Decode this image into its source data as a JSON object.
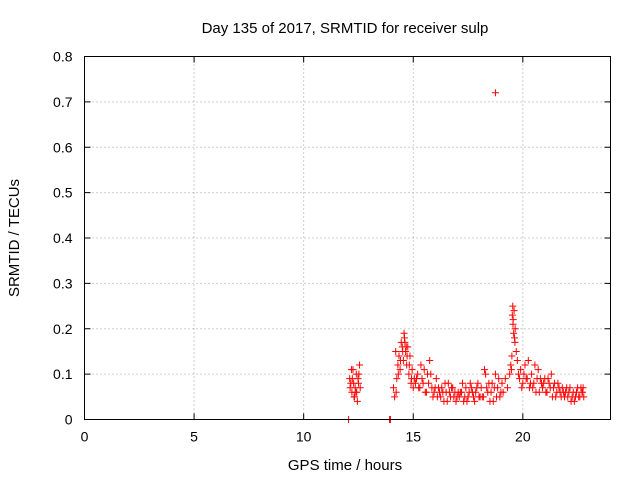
{
  "chart_data": {
    "type": "scatter",
    "title": "Day 135 of 2017, SRMTID for receiver sulp",
    "xlabel": "GPS time / hours",
    "ylabel": "SRMTID / TECUs",
    "xlim": [
      0,
      24
    ],
    "ylim": [
      0,
      0.8
    ],
    "xticks": [
      0,
      5,
      10,
      15,
      20
    ],
    "xtick_labels": [
      "0",
      "5",
      "10",
      "15",
      "20"
    ],
    "yticks": [
      0,
      0.1,
      0.2,
      0.3,
      0.4,
      0.5,
      0.6,
      0.7,
      0.8
    ],
    "ytick_labels": [
      "0",
      "0.1",
      "0.2",
      "0.3",
      "0.4",
      "0.5",
      "0.6",
      "0.7",
      "0.8"
    ],
    "grid": true,
    "marker": "+",
    "series": [
      {
        "name": "SRMTID",
        "color": "#ff0000",
        "x": [
          12.1,
          12.15,
          12.2,
          12.25,
          12.3,
          12.35,
          12.4,
          12.45,
          12.5,
          12.55,
          12.12,
          12.22,
          12.32,
          12.42,
          12.52,
          12.18,
          12.28,
          12.38,
          12.48,
          12.58,
          12.05,
          13.92,
          13.96,
          14.1,
          14.15,
          14.2,
          14.25,
          14.3,
          14.35,
          14.4,
          14.45,
          14.5,
          14.55,
          14.6,
          14.65,
          14.7,
          14.75,
          14.8,
          14.85,
          14.9,
          14.95,
          15.0,
          15.05,
          14.22,
          14.32,
          14.42,
          14.52,
          14.62,
          14.72,
          14.82,
          14.92,
          14.58,
          14.68,
          15.1,
          15.2,
          15.3,
          15.4,
          15.5,
          15.6,
          15.7,
          15.8,
          15.9,
          16.0,
          15.15,
          15.25,
          15.35,
          15.45,
          15.55,
          15.65,
          15.75,
          15.85,
          15.95,
          16.05,
          16.1,
          16.2,
          16.3,
          16.4,
          16.5,
          16.6,
          16.7,
          16.8,
          16.9,
          17.0,
          16.15,
          16.25,
          16.35,
          16.45,
          16.55,
          16.65,
          16.75,
          16.85,
          16.95,
          17.05,
          17.1,
          17.2,
          17.3,
          17.4,
          17.5,
          17.6,
          17.7,
          17.8,
          17.9,
          18.0,
          17.15,
          17.25,
          17.35,
          17.45,
          17.55,
          17.65,
          17.75,
          17.85,
          17.95,
          18.05,
          18.1,
          18.2,
          18.3,
          18.4,
          18.5,
          18.6,
          18.7,
          18.8,
          18.9,
          19.0,
          18.15,
          18.25,
          18.35,
          18.45,
          18.55,
          18.65,
          18.75,
          18.85,
          18.95,
          19.05,
          18.75,
          19.1,
          19.2,
          19.3,
          19.4,
          19.45,
          19.5,
          19.55,
          19.6,
          19.65,
          19.7,
          19.52,
          19.54,
          19.56,
          19.58,
          19.62,
          19.64,
          19.48,
          19.75,
          19.8,
          19.85,
          19.9,
          20.0,
          20.1,
          20.2,
          20.3,
          20.4,
          20.5,
          20.6,
          20.7,
          20.8,
          19.95,
          20.05,
          20.15,
          20.25,
          20.35,
          20.45,
          20.55,
          20.65,
          20.75,
          20.85,
          20.9,
          21.0,
          21.1,
          21.2,
          21.3,
          21.4,
          21.5,
          21.6,
          21.7,
          21.8,
          20.95,
          21.05,
          21.15,
          21.25,
          21.35,
          21.45,
          21.55,
          21.65,
          21.75,
          21.85,
          21.9,
          22.0,
          22.1,
          22.2,
          22.3,
          22.4,
          22.5,
          22.6,
          22.7,
          22.75,
          21.95,
          22.05,
          22.15,
          22.25,
          22.35,
          22.45,
          22.55,
          22.65,
          22.72,
          22.78
        ],
        "y": [
          0.09,
          0.08,
          0.06,
          0.11,
          0.05,
          0.07,
          0.1,
          0.04,
          0.08,
          0.12,
          0.07,
          0.09,
          0.05,
          0.06,
          0.1,
          0.11,
          0.08,
          0.06,
          0.09,
          0.07,
          0.0,
          0.0,
          0.0,
          0.07,
          0.05,
          0.15,
          0.09,
          0.12,
          0.14,
          0.11,
          0.17,
          0.16,
          0.13,
          0.18,
          0.15,
          0.12,
          0.16,
          0.1,
          0.14,
          0.08,
          0.11,
          0.07,
          0.09,
          0.06,
          0.1,
          0.13,
          0.15,
          0.17,
          0.14,
          0.12,
          0.09,
          0.19,
          0.16,
          0.08,
          0.1,
          0.07,
          0.09,
          0.11,
          0.06,
          0.08,
          0.1,
          0.05,
          0.07,
          0.09,
          0.07,
          0.12,
          0.08,
          0.06,
          0.1,
          0.13,
          0.07,
          0.06,
          0.09,
          0.05,
          0.06,
          0.07,
          0.04,
          0.06,
          0.08,
          0.05,
          0.07,
          0.06,
          0.05,
          0.07,
          0.05,
          0.06,
          0.08,
          0.04,
          0.06,
          0.07,
          0.05,
          0.04,
          0.06,
          0.05,
          0.06,
          0.04,
          0.07,
          0.05,
          0.08,
          0.06,
          0.04,
          0.07,
          0.05,
          0.06,
          0.08,
          0.05,
          0.04,
          0.06,
          0.07,
          0.05,
          0.06,
          0.08,
          0.05,
          0.07,
          0.05,
          0.1,
          0.06,
          0.04,
          0.08,
          0.07,
          0.05,
          0.09,
          0.06,
          0.05,
          0.11,
          0.07,
          0.08,
          0.06,
          0.04,
          0.1,
          0.07,
          0.05,
          0.08,
          0.72,
          0.06,
          0.09,
          0.07,
          0.1,
          0.12,
          0.14,
          0.21,
          0.24,
          0.2,
          0.15,
          0.23,
          0.25,
          0.22,
          0.19,
          0.18,
          0.17,
          0.11,
          0.13,
          0.1,
          0.09,
          0.11,
          0.08,
          0.12,
          0.09,
          0.07,
          0.1,
          0.08,
          0.06,
          0.11,
          0.09,
          0.07,
          0.1,
          0.09,
          0.13,
          0.08,
          0.07,
          0.12,
          0.09,
          0.06,
          0.08,
          0.07,
          0.09,
          0.06,
          0.08,
          0.1,
          0.07,
          0.05,
          0.08,
          0.06,
          0.07,
          0.08,
          0.06,
          0.09,
          0.07,
          0.05,
          0.08,
          0.06,
          0.07,
          0.05,
          0.06,
          0.05,
          0.07,
          0.06,
          0.04,
          0.06,
          0.05,
          0.07,
          0.05,
          0.06,
          0.07,
          0.06,
          0.05,
          0.07,
          0.05,
          0.04,
          0.06,
          0.05,
          0.07,
          0.06,
          0.05
        ]
      }
    ]
  }
}
